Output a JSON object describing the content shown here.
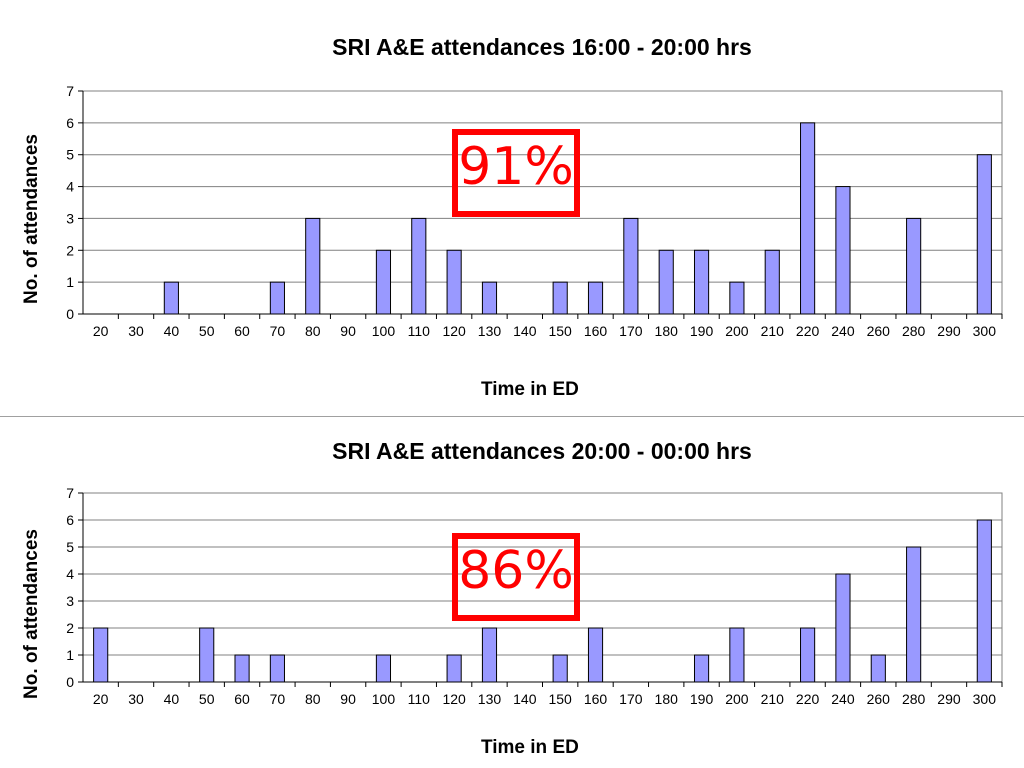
{
  "colors": {
    "bar_fill": "#9999ff",
    "bar_stroke": "#000000",
    "badge": "#ff0000",
    "grid": "#808080"
  },
  "chart_data": [
    {
      "type": "bar",
      "title": "SRI A&E attendances 16:00 - 20:00 hrs",
      "xlabel": "Time in ED",
      "ylabel": "No. of attendances",
      "categories": [
        "20",
        "30",
        "40",
        "50",
        "60",
        "70",
        "80",
        "90",
        "100",
        "110",
        "120",
        "130",
        "140",
        "150",
        "160",
        "170",
        "180",
        "190",
        "200",
        "210",
        "220",
        "240",
        "260",
        "280",
        "290",
        "300"
      ],
      "values": [
        0,
        0,
        1,
        0,
        0,
        1,
        3,
        0,
        2,
        3,
        2,
        1,
        0,
        1,
        1,
        3,
        2,
        2,
        1,
        2,
        6,
        4,
        0,
        3,
        0,
        5
      ],
      "ylim": [
        0,
        7
      ],
      "yticks": [
        0,
        1,
        2,
        3,
        4,
        5,
        6,
        7
      ],
      "grid": true,
      "annotation": "91%"
    },
    {
      "type": "bar",
      "title": "SRI A&E attendances 20:00 - 00:00 hrs",
      "xlabel": "Time in ED",
      "ylabel": "No. of attendances",
      "categories": [
        "20",
        "30",
        "40",
        "50",
        "60",
        "70",
        "80",
        "90",
        "100",
        "110",
        "120",
        "130",
        "140",
        "150",
        "160",
        "170",
        "180",
        "190",
        "200",
        "210",
        "220",
        "240",
        "260",
        "280",
        "290",
        "300"
      ],
      "values": [
        2,
        0,
        0,
        2,
        1,
        1,
        0,
        0,
        1,
        0,
        1,
        2,
        0,
        1,
        2,
        0,
        0,
        1,
        2,
        0,
        2,
        4,
        1,
        5,
        0,
        6
      ],
      "ylim": [
        0,
        7
      ],
      "yticks": [
        0,
        1,
        2,
        3,
        4,
        5,
        6,
        7
      ],
      "grid": true,
      "annotation": "86%"
    }
  ]
}
